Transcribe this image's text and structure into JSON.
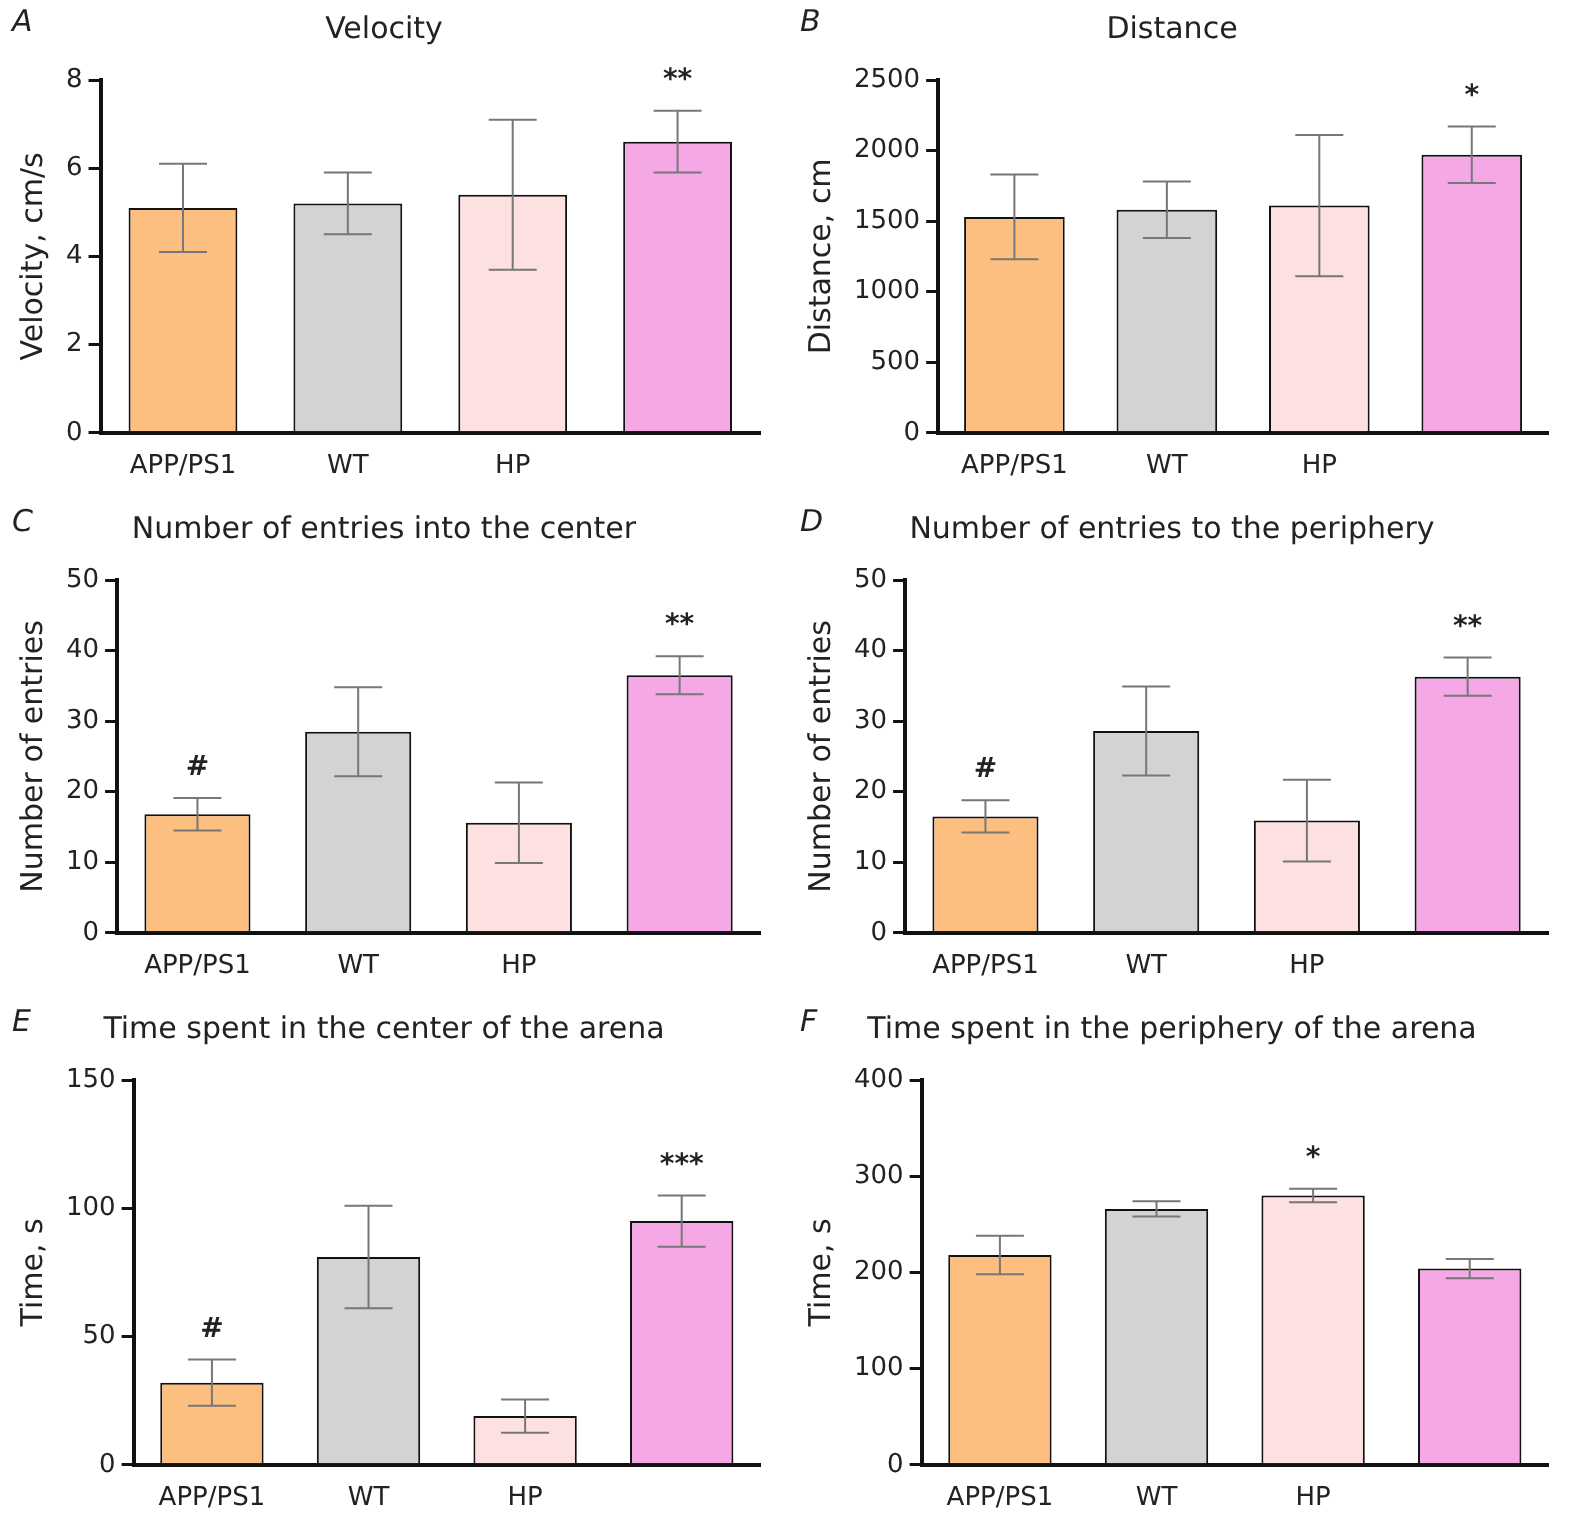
{
  "chart_data": [
    {
      "type": "bar",
      "title": "Velocity",
      "annotations": [
        "A"
      ],
      "ylabel": "Velocity, cm/s",
      "categories": [
        "APP/PS1",
        "WT",
        "HP",
        null
      ],
      "values": [
        5.1,
        5.2,
        5.4,
        6.6
      ],
      "errors": [
        1.0,
        0.7,
        1.7,
        0.7
      ],
      "colors": [
        "#fdbf7f",
        "#d3d3d3",
        "#fde0e0",
        "#f5a8e6"
      ],
      "value_labels": [
        null,
        null,
        null,
        "**"
      ],
      "ylim": [
        0,
        8
      ],
      "yticks": [
        0,
        2,
        4,
        6,
        8
      ],
      "grid": false,
      "legend": false
    },
    {
      "type": "bar",
      "title": "Distance",
      "annotations": [
        "B"
      ],
      "ylabel": "Distance, cm",
      "categories": [
        "APP/PS1",
        "WT",
        "HP",
        null
      ],
      "values": [
        1530,
        1580,
        1610,
        1970
      ],
      "errors": [
        300,
        200,
        500,
        200
      ],
      "colors": [
        "#fdbf7f",
        "#d3d3d3",
        "#fde0e0",
        "#f5a8e6"
      ],
      "value_labels": [
        null,
        null,
        null,
        "*"
      ],
      "ylim": [
        0,
        2500
      ],
      "yticks": [
        0,
        500,
        1000,
        1500,
        2000,
        2500
      ],
      "grid": false,
      "legend": false
    },
    {
      "type": "bar",
      "title": "Number of entries into the center",
      "annotations": [
        "C"
      ],
      "ylabel": "Number of entries",
      "categories": [
        "APP/PS1",
        "WT",
        "HP",
        null
      ],
      "values": [
        16.8,
        28.5,
        15.6,
        36.5
      ],
      "errors": [
        2.3,
        6.3,
        5.7,
        2.7
      ],
      "colors": [
        "#fdbf7f",
        "#d3d3d3",
        "#fde0e0",
        "#f5a8e6"
      ],
      "value_labels": [
        "#",
        null,
        null,
        "**"
      ],
      "ylim": [
        0,
        50
      ],
      "yticks": [
        0,
        10,
        20,
        30,
        40,
        50
      ],
      "grid": false,
      "legend": false
    },
    {
      "type": "bar",
      "title": "Number of entries to the periphery",
      "annotations": [
        "D"
      ],
      "ylabel": "Number of entries",
      "categories": [
        "APP/PS1",
        "WT",
        "HP",
        null
      ],
      "values": [
        16.5,
        28.6,
        15.9,
        36.3
      ],
      "errors": [
        2.3,
        6.3,
        5.8,
        2.7
      ],
      "colors": [
        "#fdbf7f",
        "#d3d3d3",
        "#fde0e0",
        "#f5a8e6"
      ],
      "value_labels": [
        "#",
        null,
        null,
        "**"
      ],
      "ylim": [
        0,
        50
      ],
      "yticks": [
        0,
        10,
        20,
        30,
        40,
        50
      ],
      "grid": false,
      "legend": false
    },
    {
      "type": "bar",
      "title": "Time spent in the center of the arena",
      "annotations": [
        "E"
      ],
      "ylabel": "Time, s",
      "categories": [
        "APP/PS1",
        "WT",
        "HP",
        null
      ],
      "values": [
        32,
        81,
        19,
        95
      ],
      "errors": [
        9,
        20,
        6.5,
        10
      ],
      "colors": [
        "#fdbf7f",
        "#d3d3d3",
        "#fde0e0",
        "#f5a8e6"
      ],
      "value_labels": [
        "#",
        null,
        null,
        "***"
      ],
      "ylim": [
        0,
        150
      ],
      "yticks": [
        0,
        50,
        100,
        150
      ],
      "grid": false,
      "legend": false
    },
    {
      "type": "bar",
      "title": "Time spent in the periphery of the arena",
      "annotations": [
        "F"
      ],
      "ylabel": "Time, s",
      "categories": [
        "APP/PS1",
        "WT",
        "HP",
        null
      ],
      "values": [
        218,
        266,
        280,
        204
      ],
      "errors": [
        20,
        8,
        7,
        10
      ],
      "colors": [
        "#fdbf7f",
        "#d3d3d3",
        "#fde0e0",
        "#f5a8e6"
      ],
      "value_labels": [
        null,
        null,
        "*",
        null
      ],
      "ylim": [
        0,
        400
      ],
      "yticks": [
        0,
        100,
        200,
        300,
        400
      ],
      "grid": false,
      "legend": false
    }
  ]
}
